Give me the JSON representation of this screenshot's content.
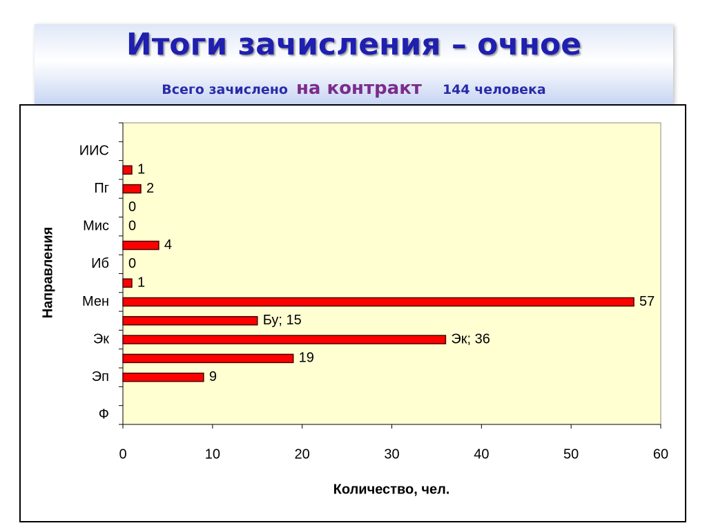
{
  "header": {
    "title": "Итоги зачисления – очное",
    "subtitle_parts": [
      "Всего зачислено",
      "на контракт",
      "144 человека"
    ]
  },
  "chart_data": {
    "type": "bar",
    "orientation": "horizontal",
    "categories": [
      null,
      "ИИС",
      null,
      "Пг",
      null,
      "Мис",
      null,
      "Иб",
      null,
      "Мен",
      null,
      "Эк",
      null,
      "Эп",
      null,
      "Ф"
    ],
    "values": [
      null,
      null,
      1,
      2,
      0,
      0,
      4,
      0,
      1,
      57,
      15,
      36,
      19,
      9,
      null,
      null
    ],
    "value_labels": [
      null,
      null,
      "1",
      "2",
      "0",
      "0",
      "4",
      "0",
      "1",
      "57",
      "Бу; 15",
      "Эк; 36",
      "19",
      "9",
      null,
      null
    ],
    "color": "#ff0000",
    "xlim": [
      0,
      60
    ],
    "xticks": [
      0,
      10,
      20,
      30,
      40,
      50,
      60
    ],
    "x_label": "Количество, чел.",
    "y_label": "Направления",
    "grid": false
  }
}
